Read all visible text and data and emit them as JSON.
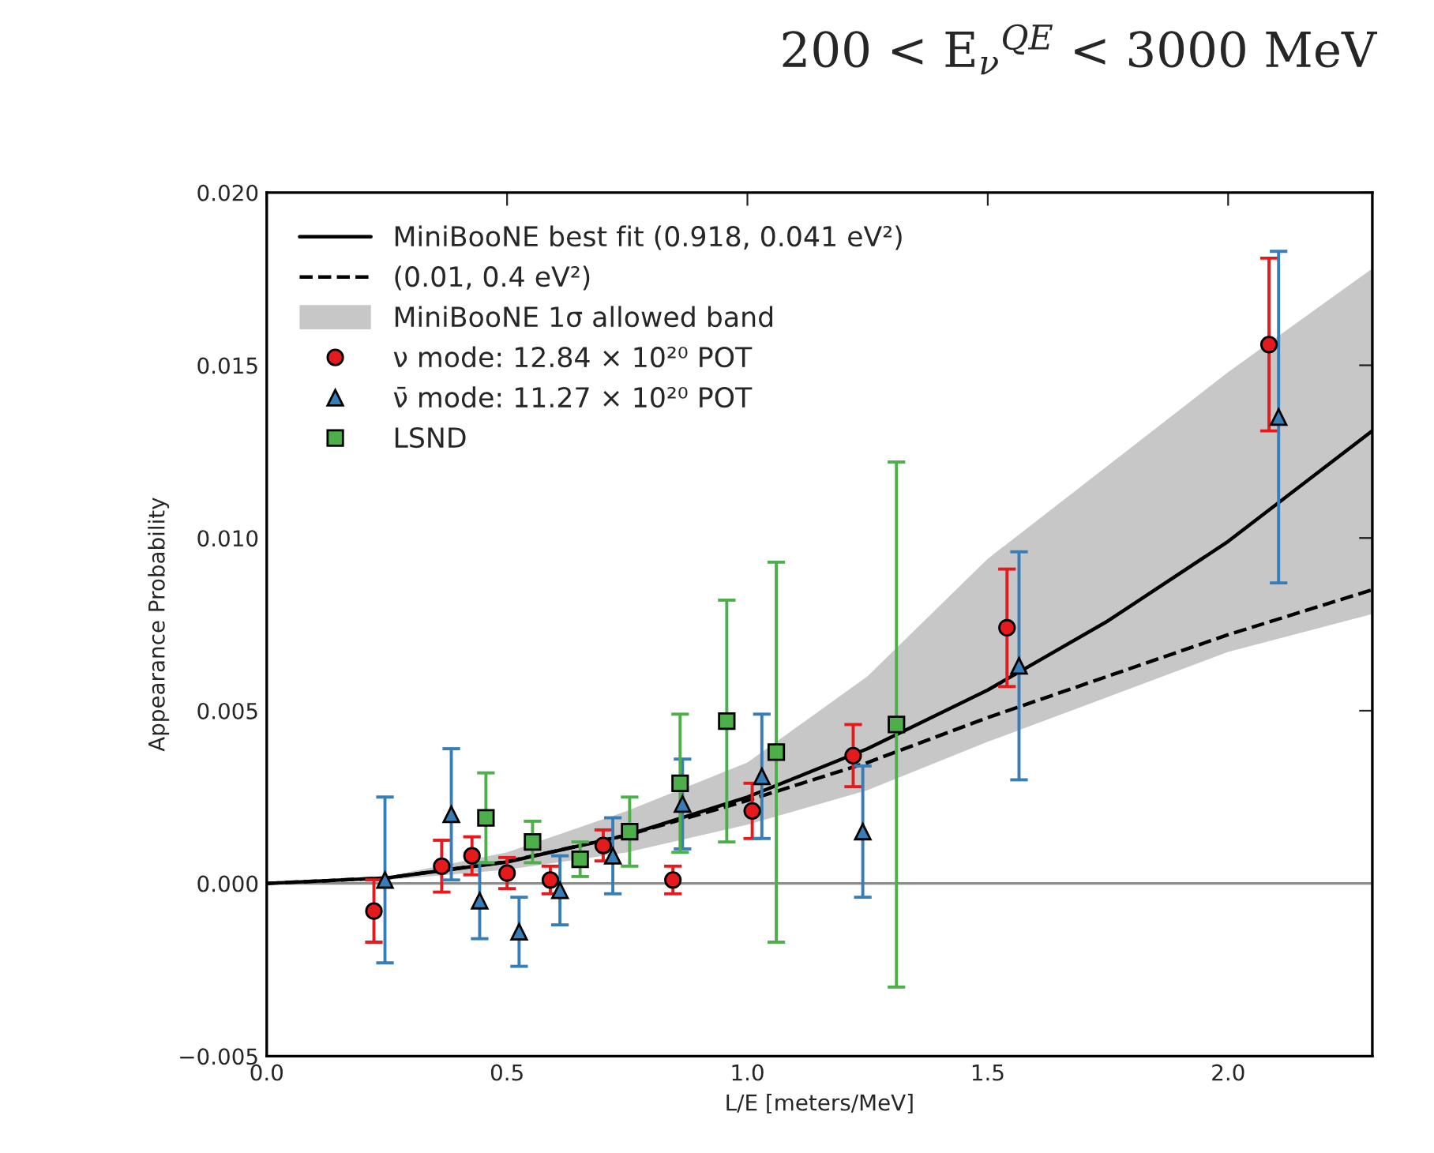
{
  "chart_data": {
    "type": "scatter",
    "title": "200 < E$_{ν}$$^{QE}$ < 3000 MeV",
    "xlabel": "L/E [meters/MeV]",
    "ylabel": "Appearance Probability",
    "xlim": [
      0,
      2.3
    ],
    "xticks": [
      {
        "value": 0,
        "label": "0.0"
      },
      {
        "value": 0.5,
        "label": "0.5"
      },
      {
        "value": 1,
        "label": "1.0"
      },
      {
        "value": 1.5,
        "label": "1.5"
      },
      {
        "value": 2,
        "label": "2.0"
      }
    ],
    "ylim": [
      -0.005,
      0.02
    ],
    "yticks": [
      {
        "value": -0.005,
        "label": "−0.005"
      },
      {
        "value": 0,
        "label": "0.000"
      },
      {
        "value": 0.005,
        "label": "0.005"
      },
      {
        "value": 0.01,
        "label": "0.010"
      },
      {
        "value": 0.015,
        "label": "0.015"
      },
      {
        "value": 0.02,
        "label": "0.020"
      }
    ],
    "grid": false,
    "legend": "top left",
    "annotations": [
      "MiniBooNE 1σ allowed band"
    ],
    "ref_lines": [
      {
        "axis": "y",
        "value": 0,
        "color": "#8c8c8c"
      }
    ],
    "series": [
      {
        "type": "line",
        "name": "MiniBooNE best fit (0.918, 0.041 eV²)",
        "color": "#000000",
        "line_style": "solid",
        "marker": "none",
        "x": [
          0,
          0.25,
          0.5,
          0.75,
          1.0,
          1.25,
          1.5,
          1.75,
          2.0,
          2.3
        ],
        "values": [
          0,
          0.00016,
          0.00062,
          0.0014,
          0.0025,
          0.0039,
          0.0056,
          0.0076,
          0.0099,
          0.0131
        ],
        "lower": [
          0,
          0.0001,
          0.0004,
          0.0009,
          0.0017,
          0.0027,
          0.0041,
          0.0054,
          0.0067,
          0.0078
        ],
        "upper": [
          0,
          0.0002,
          0.0009,
          0.0021,
          0.0035,
          0.006,
          0.0094,
          0.0121,
          0.0148,
          0.0178
        ]
      },
      {
        "type": "line",
        "name": "(0.01, 0.4 eV²)",
        "color": "#000000",
        "line_style": "dashed",
        "marker": "none",
        "x": [
          0,
          0.25,
          0.5,
          0.75,
          1.0,
          1.25,
          1.5,
          1.75,
          2.0,
          2.3
        ],
        "values": [
          0,
          0.00016,
          0.00063,
          0.0014,
          0.0024,
          0.0035,
          0.0048,
          0.006,
          0.0072,
          0.0085
        ]
      },
      {
        "type": "scatter",
        "name": "ν mode: 12.84 × 10²⁰ POT",
        "color": "#e41a1c",
        "marker": "circle",
        "x": [
          0.223,
          0.364,
          0.427,
          0.5,
          0.59,
          0.7,
          0.845,
          1.01,
          1.22,
          1.54,
          2.085
        ],
        "values": [
          -0.0008,
          0.0005,
          0.0008,
          0.0003,
          0.0001,
          0.0011,
          0.0001,
          0.0021,
          0.0037,
          0.0074,
          0.0156
        ],
        "errors": [
          0.0009,
          0.00075,
          0.00055,
          0.00045,
          0.0004,
          0.00045,
          0.0004,
          0.0008,
          0.0009,
          0.0017,
          0.0025
        ]
      },
      {
        "type": "scatter",
        "name": "ν̄ mode: 11.27 × 10²⁰ POT",
        "color": "#377eb8",
        "marker": "triangle",
        "x": [
          0.246,
          0.384,
          0.443,
          0.525,
          0.61,
          0.72,
          0.865,
          1.03,
          1.24,
          1.565,
          2.105
        ],
        "values": [
          0.0001,
          0.002,
          -0.0005,
          -0.0014,
          -0.0002,
          0.0008,
          0.0023,
          0.0031,
          0.0015,
          0.0063,
          0.0135
        ],
        "errors": [
          0.0024,
          0.0019,
          0.0011,
          0.001,
          0.001,
          0.0011,
          0.0013,
          0.0018,
          0.0019,
          0.0033,
          0.0048
        ]
      },
      {
        "type": "scatter",
        "name": "LSND",
        "color": "#4daf4a",
        "marker": "square",
        "x": [
          0.456,
          0.553,
          0.652,
          0.755,
          0.86,
          0.957,
          1.06,
          1.31
        ],
        "values": [
          0.0019,
          0.0012,
          0.0007,
          0.0015,
          0.0029,
          0.0047,
          0.0038,
          0.0046
        ],
        "errors": [
          0.0013,
          0.0006,
          0.0005,
          0.001,
          0.002,
          0.0035,
          0.0055,
          0.0076
        ]
      }
    ]
  }
}
